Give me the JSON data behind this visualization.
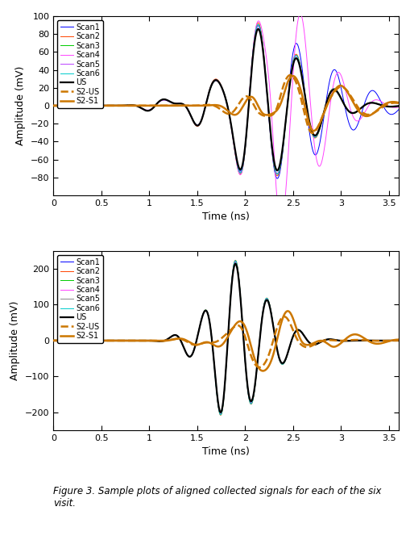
{
  "plot1": {
    "ylim": [
      -100,
      100
    ],
    "yticks": [
      -80,
      -60,
      -40,
      -20,
      0,
      20,
      40,
      60,
      80,
      100
    ],
    "xlim": [
      0,
      3.6
    ],
    "xticks": [
      0,
      0.5,
      1,
      1.5,
      2,
      2.5,
      3,
      3.5
    ],
    "xticklabels": [
      "0",
      "0.5",
      "1",
      "1.5",
      "2",
      "2.5",
      "3",
      "3.5"
    ],
    "xlabel": "Time (ns)",
    "ylabel": "Amplitude (mV)",
    "scan_colors": [
      "#0000ff",
      "#ff4400",
      "#00cc00",
      "#ff44ff",
      "#bb44ff",
      "#00cccc"
    ],
    "us_color": "#000000",
    "s2us_color": "#cc7700",
    "s2s1_color": "#cc7700"
  },
  "plot2": {
    "ylim": [
      -250,
      250
    ],
    "yticks": [
      -200,
      -100,
      0,
      100,
      200
    ],
    "xlim": [
      0,
      3.6
    ],
    "xticks": [
      0,
      0.5,
      1,
      1.5,
      2,
      2.5,
      3,
      3.5
    ],
    "xticklabels": [
      "0",
      "0.5",
      "1",
      "1.5",
      "2",
      "2.5",
      "3",
      "3.5"
    ],
    "xlabel": "Time (ns)",
    "ylabel": "Amplitude (mV)",
    "scan_colors": [
      "#0000ff",
      "#ff4400",
      "#00cc00",
      "#ff44ff",
      "#888888",
      "#00cccc"
    ],
    "us_color": "#000000",
    "s2us_color": "#cc7700",
    "s2s1_color": "#cc7700"
  },
  "legend_labels": [
    "Scan1",
    "Scan2",
    "Scan3",
    "Scan4",
    "Scan5",
    "Scan6",
    "US",
    "S2-US",
    "S2-S1"
  ],
  "caption": "Figure 3. Sample plots of aligned collected signals for each of the six\nvisit.",
  "background_color": "#ffffff",
  "scan_lw": 0.7,
  "us_lw": 1.6,
  "orange_lw": 1.8,
  "legend_fontsize": 7,
  "tick_fontsize": 8,
  "label_fontsize": 9
}
